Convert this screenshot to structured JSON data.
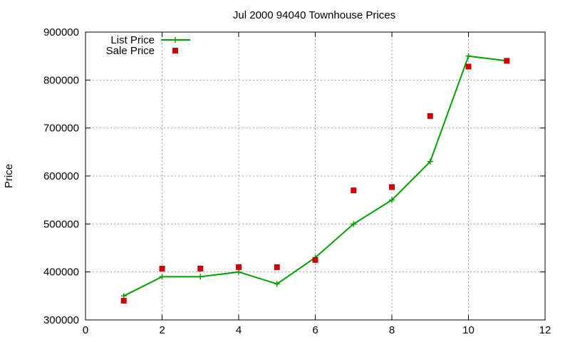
{
  "chart_data": {
    "type": "line",
    "title": "Jul 2000 94040 Townhouse Prices",
    "xlabel": "",
    "ylabel": "Price",
    "xlim": [
      0,
      12
    ],
    "ylim": [
      300000,
      900000
    ],
    "xticks": [
      0,
      2,
      4,
      6,
      8,
      10,
      12
    ],
    "yticks": [
      300000,
      400000,
      500000,
      600000,
      700000,
      800000,
      900000
    ],
    "grid": true,
    "legend_position": "top-left",
    "series": [
      {
        "name": "List Price",
        "kind": "line",
        "marker": "plus",
        "color": "#00a000",
        "x": [
          1,
          2,
          3,
          4,
          5,
          6,
          7,
          8,
          9,
          10,
          11
        ],
        "y": [
          350000,
          390000,
          390000,
          400000,
          375000,
          430000,
          500000,
          550000,
          630000,
          850000,
          840000
        ]
      },
      {
        "name": "Sale Price",
        "kind": "points",
        "marker": "square",
        "color": "#cc0000",
        "x": [
          1,
          2,
          3,
          4,
          5,
          6,
          7,
          8,
          9,
          10,
          11
        ],
        "y": [
          340000,
          407000,
          407000,
          410000,
          410000,
          425000,
          570000,
          577000,
          725000,
          828000,
          840000
        ]
      }
    ]
  }
}
